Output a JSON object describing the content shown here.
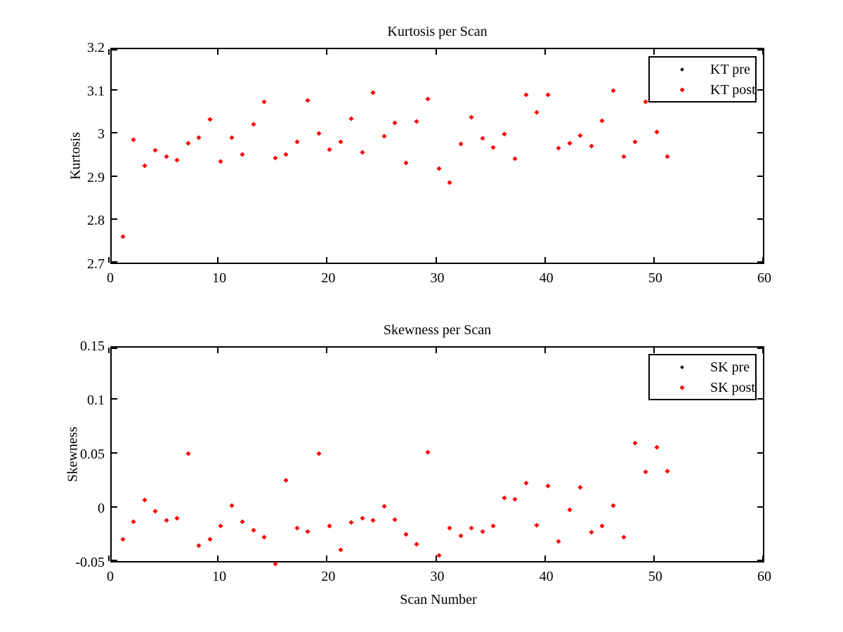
{
  "figure": {
    "background": "#ffffff",
    "axis_color": "#000000",
    "pre_marker_color": "#000000",
    "post_marker_color": "#ff0000"
  },
  "chart_data": [
    {
      "type": "scatter",
      "title": "Kurtosis per Scan",
      "xlabel": "",
      "ylabel": "Kurtosis",
      "xlim": [
        0,
        60
      ],
      "ylim": [
        2.7,
        3.2
      ],
      "grid": false,
      "xticks": [
        0,
        10,
        20,
        30,
        40,
        50,
        60
      ],
      "xtick_labels": [
        "0",
        "10",
        "20",
        "30",
        "40",
        "50",
        "60"
      ],
      "yticks": [
        2.7,
        2.8,
        2.9,
        3.0,
        3.1,
        3.2
      ],
      "ytick_labels": [
        "2.7",
        "2.8",
        "2.9",
        "3",
        "3.1",
        "3.2"
      ],
      "legend_position": "top-right",
      "legend": [
        {
          "label": "KT pre",
          "color": "#000000",
          "marker": "diamond"
        },
        {
          "label": "KT post",
          "color": "#ff0000",
          "marker": "diamond"
        }
      ],
      "x": [
        1,
        2,
        3,
        4,
        5,
        6,
        7,
        8,
        9,
        10,
        11,
        12,
        13,
        14,
        15,
        16,
        17,
        18,
        19,
        20,
        21,
        22,
        23,
        24,
        25,
        26,
        27,
        28,
        29,
        30,
        31,
        32,
        33,
        34,
        35,
        36,
        37,
        38,
        39,
        40,
        41,
        42,
        43,
        44,
        45,
        46,
        47,
        48,
        49,
        50,
        51
      ],
      "series": [
        {
          "name": "KT post",
          "color": "#ff0000",
          "values": [
            2.766,
            2.99,
            2.93,
            2.966,
            2.952,
            2.944,
            2.982,
            2.996,
            3.038,
            2.941,
            2.996,
            2.957,
            3.026,
            3.079,
            2.949,
            2.956,
            2.985,
            3.082,
            3.006,
            2.968,
            2.985,
            3.039,
            2.962,
            3.099,
            2.999,
            3.03,
            2.937,
            3.032,
            3.084,
            2.924,
            2.891,
            2.981,
            3.043,
            2.994,
            2.973,
            3.004,
            2.946,
            3.095,
            3.054,
            3.095,
            2.971,
            2.982,
            3.0,
            2.976,
            3.035,
            3.105,
            2.951,
            2.985,
            3.078,
            3.009,
            2.951
          ]
        }
      ]
    },
    {
      "type": "scatter",
      "title": "Skewness per Scan",
      "xlabel": "Scan Number",
      "ylabel": "Skewness",
      "xlim": [
        0,
        60
      ],
      "ylim": [
        -0.05,
        0.15
      ],
      "grid": false,
      "xticks": [
        0,
        10,
        20,
        30,
        40,
        50,
        60
      ],
      "xtick_labels": [
        "0",
        "10",
        "20",
        "30",
        "40",
        "50",
        "60"
      ],
      "yticks": [
        -0.05,
        0,
        0.05,
        0.1,
        0.15
      ],
      "ytick_labels": [
        "-0.05",
        "0",
        "0.05",
        "0.1",
        "0.15"
      ],
      "legend_position": "top-right",
      "legend": [
        {
          "label": "SK pre",
          "color": "#000000",
          "marker": "diamond"
        },
        {
          "label": "SK post",
          "color": "#ff0000",
          "marker": "diamond"
        }
      ],
      "x": [
        1,
        2,
        3,
        4,
        5,
        6,
        7,
        8,
        9,
        10,
        11,
        12,
        13,
        14,
        15,
        16,
        17,
        18,
        19,
        20,
        21,
        22,
        23,
        24,
        25,
        26,
        27,
        28,
        29,
        30,
        31,
        32,
        33,
        34,
        35,
        36,
        37,
        38,
        39,
        40,
        41,
        42,
        43,
        44,
        45,
        46,
        47,
        48,
        49,
        50,
        51
      ],
      "series": [
        {
          "name": "SK post",
          "color": "#ff0000",
          "values": [
            -0.027,
            -0.011,
            0.009,
            -0.001,
            -0.01,
            -0.008,
            0.052,
            -0.033,
            -0.027,
            -0.015,
            0.004,
            -0.011,
            -0.019,
            -0.025,
            -0.05,
            0.027,
            -0.017,
            -0.02,
            0.052,
            -0.015,
            -0.037,
            -0.012,
            -0.008,
            -0.01,
            0.003,
            -0.009,
            -0.023,
            -0.032,
            0.053,
            -0.042,
            -0.017,
            -0.024,
            -0.017,
            -0.02,
            -0.015,
            0.011,
            0.01,
            0.025,
            -0.014,
            0.022,
            -0.029,
            0.0,
            0.021,
            -0.021,
            -0.015,
            0.004,
            -0.025,
            0.062,
            0.035,
            0.058,
            0.036
          ]
        }
      ]
    }
  ]
}
